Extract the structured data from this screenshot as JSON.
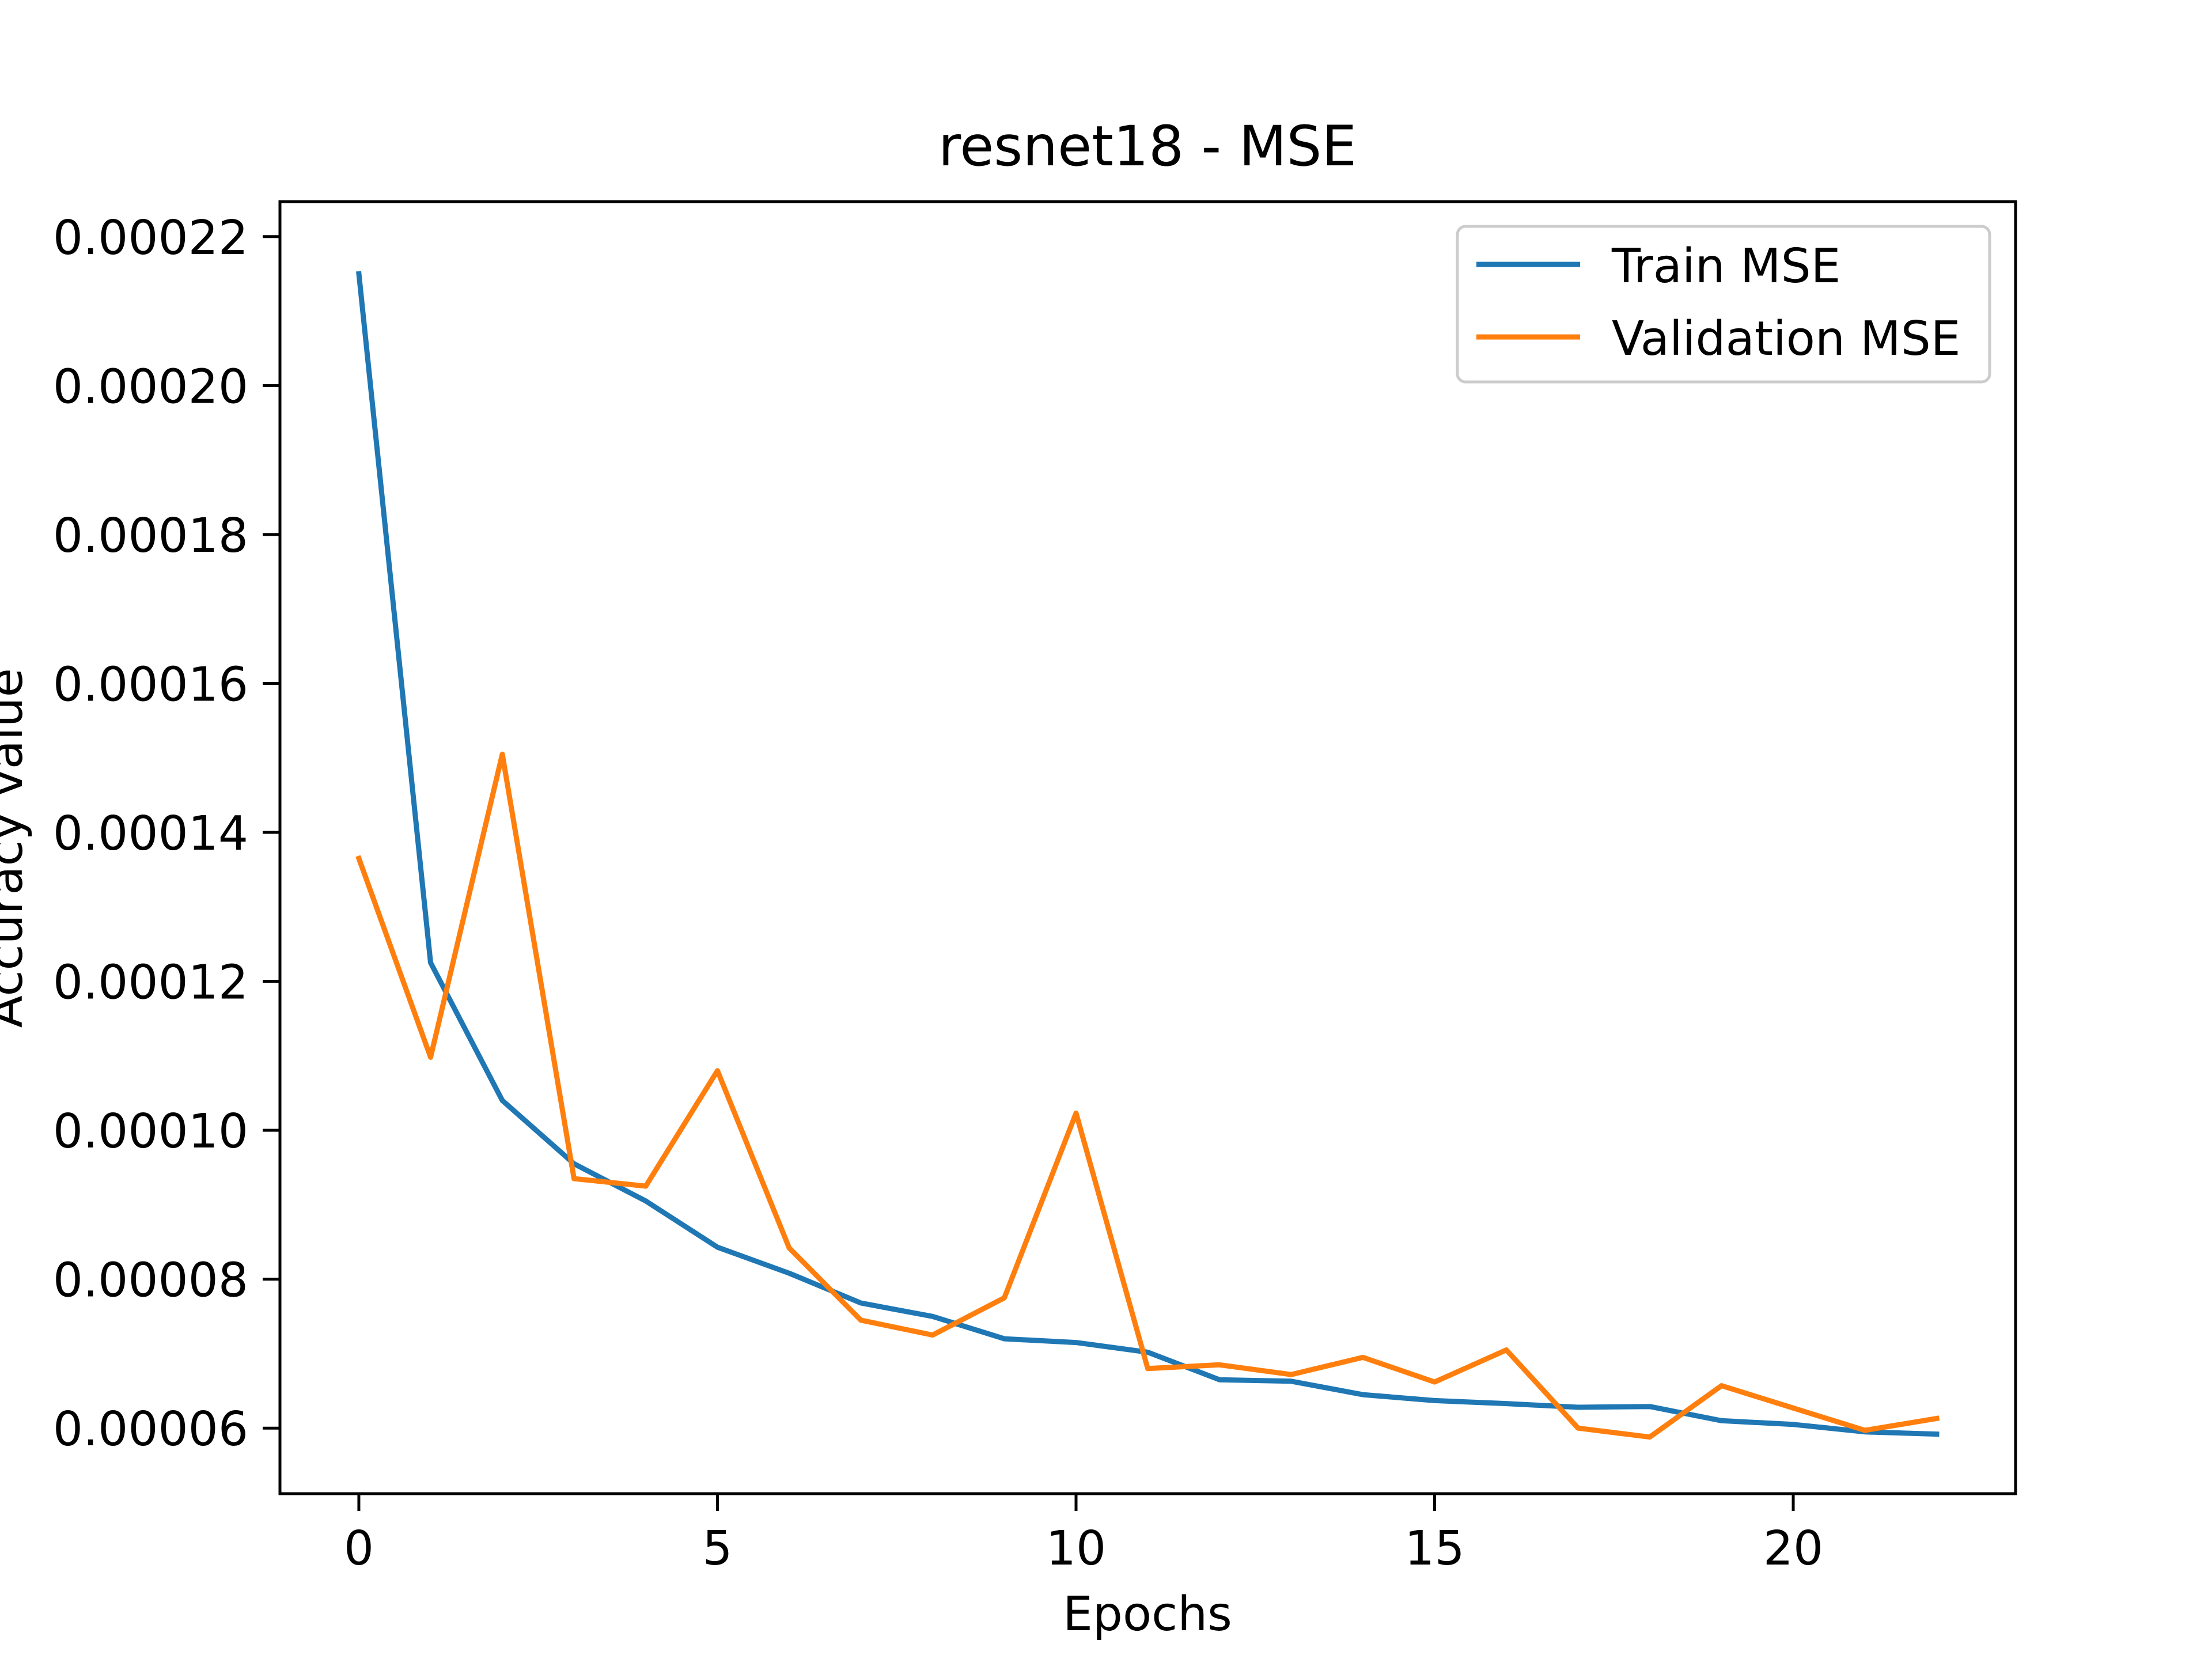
{
  "chart_data": {
    "type": "line",
    "title": "resnet18 - MSE",
    "xlabel": "Epochs",
    "ylabel": "Accuracy value",
    "xlim": [
      -1.1,
      23.1
    ],
    "ylim": [
      5.12e-05,
      0.0002247
    ],
    "x_ticks": [
      0,
      5,
      10,
      15,
      20
    ],
    "x_tick_labels": [
      "0",
      "5",
      "10",
      "15",
      "20"
    ],
    "y_ticks": [
      6e-05,
      8e-05,
      0.0001,
      0.00012,
      0.00014,
      0.00016,
      0.00018,
      0.0002,
      0.00022
    ],
    "y_tick_labels": [
      "0.00006",
      "0.00008",
      "0.00010",
      "0.00012",
      "0.00014",
      "0.00016",
      "0.00018",
      "0.00020",
      "0.00022"
    ],
    "grid": false,
    "legend_position": "top-right",
    "x": [
      0,
      1,
      2,
      3,
      4,
      5,
      6,
      7,
      8,
      9,
      10,
      11,
      12,
      13,
      14,
      15,
      16,
      17,
      18,
      19,
      20,
      21,
      22
    ],
    "series": [
      {
        "name": "Train MSE",
        "color": "#1f77b4",
        "values": [
          0.000215,
          0.0001225,
          0.000104,
          9.55e-05,
          9.05e-05,
          8.43e-05,
          8.08e-05,
          7.68e-05,
          7.5e-05,
          7.2e-05,
          7.15e-05,
          7.02e-05,
          6.65e-05,
          6.63e-05,
          6.45e-05,
          6.37e-05,
          6.33e-05,
          6.28e-05,
          6.29e-05,
          6.1e-05,
          6.05e-05,
          5.95e-05,
          5.92e-05
        ]
      },
      {
        "name": "Validation MSE",
        "color": "#ff7f0e",
        "values": [
          0.0001365,
          0.0001098,
          0.0001505,
          9.35e-05,
          9.25e-05,
          0.000108,
          8.42e-05,
          7.45e-05,
          7.25e-05,
          7.75e-05,
          0.0001023,
          6.8e-05,
          6.85e-05,
          6.72e-05,
          6.95e-05,
          6.62e-05,
          7.05e-05,
          6e-05,
          5.88e-05,
          6.57e-05,
          6.27e-05,
          5.97e-05,
          6.13e-05
        ]
      }
    ]
  }
}
